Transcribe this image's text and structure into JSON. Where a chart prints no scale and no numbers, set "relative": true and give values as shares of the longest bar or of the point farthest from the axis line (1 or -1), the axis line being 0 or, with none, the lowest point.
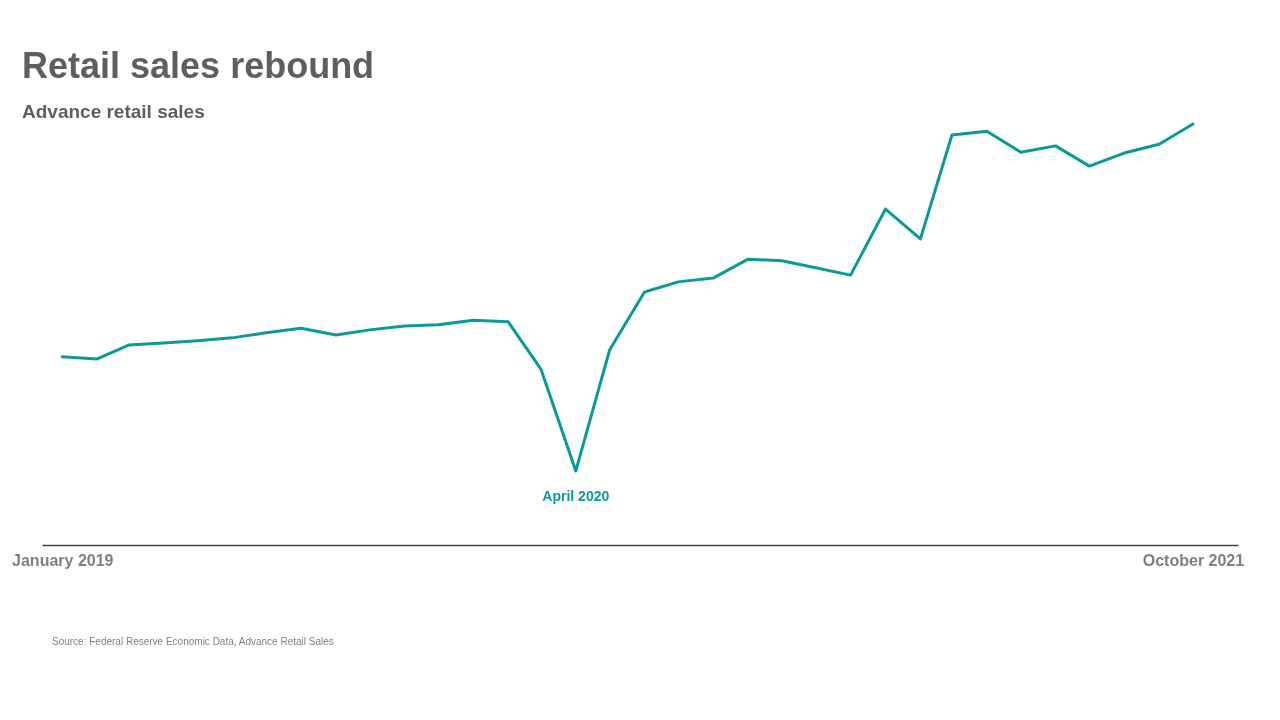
{
  "chart_data": {
    "type": "line",
    "title": "Retail sales rebound",
    "subtitle": "Advance retail sales",
    "relative": true,
    "x": [
      "2019-01",
      "2019-02",
      "2019-03",
      "2019-04",
      "2019-05",
      "2019-06",
      "2019-07",
      "2019-08",
      "2019-09",
      "2019-10",
      "2019-11",
      "2019-12",
      "2020-01",
      "2020-02",
      "2020-03",
      "2020-04",
      "2020-05",
      "2020-06",
      "2020-07",
      "2020-08",
      "2020-09",
      "2020-10",
      "2020-11",
      "2020-12",
      "2021-01",
      "2021-02",
      "2021-03",
      "2021-04",
      "2021-05",
      "2021-06",
      "2021-07",
      "2021-08",
      "2021-09",
      "2021-10"
    ],
    "xlim": [
      "2018-12-14",
      "2021-11-10"
    ],
    "xticks": [
      {
        "value": "2019-01",
        "label": "January 2019"
      },
      {
        "value": "2021-10",
        "label": "October 2021"
      }
    ],
    "series": [
      {
        "color": "#0a9a97",
        "values": [
          0.447,
          0.442,
          0.475,
          0.48,
          0.485,
          0.492,
          0.504,
          0.515,
          0.499,
          0.511,
          0.52,
          0.523,
          0.534,
          0.53,
          0.418,
          0.176,
          0.463,
          0.601,
          0.625,
          0.634,
          0.679,
          0.675,
          0.658,
          0.641,
          0.798,
          0.727,
          0.974,
          0.983,
          0.933,
          0.948,
          0.9,
          0.931,
          0.952,
          1
        ]
      }
    ],
    "annotations": [
      {
        "text": "April 2020",
        "x": "2020-04",
        "y": 0.176
      },
      "Source: Federal Reserve Economic Data, Advance Retail Sales"
    ]
  }
}
